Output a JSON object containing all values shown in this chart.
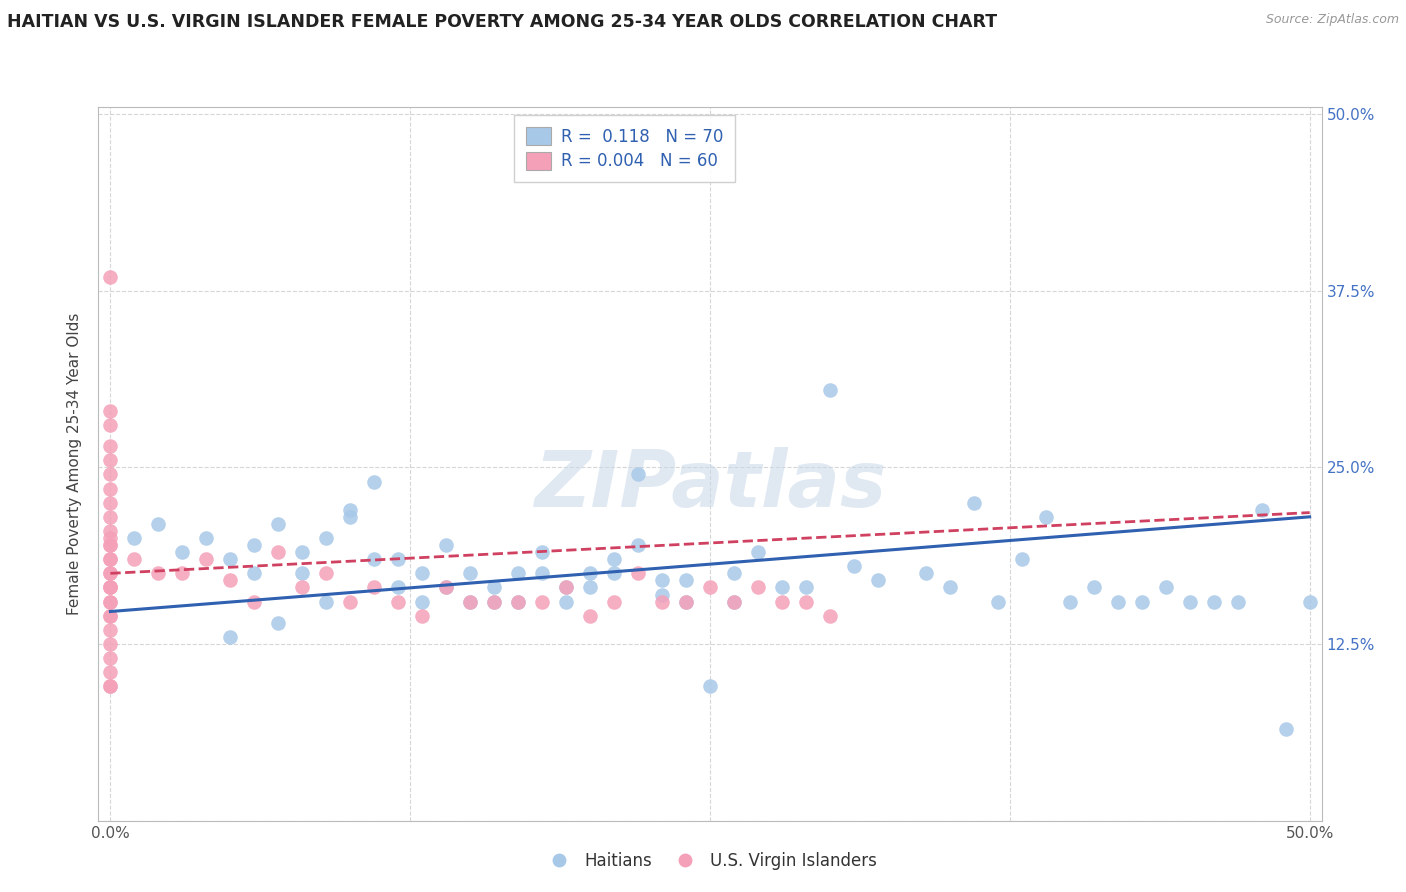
{
  "title": "HAITIAN VS U.S. VIRGIN ISLANDER FEMALE POVERTY AMONG 25-34 YEAR OLDS CORRELATION CHART",
  "source": "Source: ZipAtlas.com",
  "ylabel": "Female Poverty Among 25-34 Year Olds",
  "xlim": [
    -0.005,
    0.505
  ],
  "ylim": [
    0.0,
    0.505
  ],
  "xticks": [
    0.0,
    0.5
  ],
  "xticklabels": [
    "0.0%",
    "50.0%"
  ],
  "yticks": [
    0.0,
    0.125,
    0.25,
    0.375,
    0.5
  ],
  "ytick_right_labels": [
    "",
    "12.5%",
    "25.0%",
    "37.5%",
    "50.0%"
  ],
  "haitian_R": 0.118,
  "haitian_N": 70,
  "virgin_R": 0.004,
  "virgin_N": 60,
  "haitian_color": "#a8c8e8",
  "haitian_line_color": "#3060b0",
  "virgin_color": "#f4a0b8",
  "virgin_line_color": "#d04060",
  "background_color": "#ffffff",
  "grid_color": "#cccccc",
  "haitian_x": [
    0.01,
    0.02,
    0.03,
    0.04,
    0.05,
    0.06,
    0.07,
    0.08,
    0.09,
    0.1,
    0.11,
    0.12,
    0.13,
    0.14,
    0.15,
    0.16,
    0.17,
    0.18,
    0.19,
    0.2,
    0.21,
    0.22,
    0.23,
    0.24,
    0.25,
    0.26,
    0.27,
    0.28,
    0.29,
    0.3,
    0.31,
    0.32,
    0.05,
    0.07,
    0.09,
    0.11,
    0.13,
    0.15,
    0.17,
    0.19,
    0.21,
    0.23,
    0.34,
    0.36,
    0.38,
    0.4,
    0.42,
    0.44,
    0.46,
    0.48,
    0.06,
    0.08,
    0.1,
    0.12,
    0.14,
    0.16,
    0.18,
    0.2,
    0.22,
    0.24,
    0.35,
    0.37,
    0.39,
    0.41,
    0.43,
    0.45,
    0.47,
    0.49,
    0.5,
    0.26
  ],
  "haitian_y": [
    0.2,
    0.21,
    0.19,
    0.2,
    0.185,
    0.195,
    0.21,
    0.19,
    0.2,
    0.22,
    0.24,
    0.185,
    0.175,
    0.195,
    0.175,
    0.165,
    0.175,
    0.19,
    0.165,
    0.175,
    0.185,
    0.195,
    0.17,
    0.17,
    0.095,
    0.175,
    0.19,
    0.165,
    0.165,
    0.305,
    0.18,
    0.17,
    0.13,
    0.14,
    0.155,
    0.185,
    0.155,
    0.155,
    0.155,
    0.155,
    0.175,
    0.16,
    0.175,
    0.225,
    0.185,
    0.155,
    0.155,
    0.165,
    0.155,
    0.22,
    0.175,
    0.175,
    0.215,
    0.165,
    0.165,
    0.155,
    0.175,
    0.165,
    0.245,
    0.155,
    0.165,
    0.155,
    0.215,
    0.165,
    0.155,
    0.155,
    0.155,
    0.065,
    0.155,
    0.155
  ],
  "virgin_x": [
    0.0,
    0.0,
    0.0,
    0.0,
    0.0,
    0.0,
    0.0,
    0.0,
    0.0,
    0.0,
    0.0,
    0.0,
    0.0,
    0.0,
    0.0,
    0.0,
    0.0,
    0.0,
    0.0,
    0.0,
    0.0,
    0.0,
    0.0,
    0.0,
    0.0,
    0.0,
    0.0,
    0.0,
    0.0,
    0.0,
    0.01,
    0.02,
    0.03,
    0.04,
    0.05,
    0.06,
    0.07,
    0.08,
    0.09,
    0.1,
    0.11,
    0.12,
    0.13,
    0.14,
    0.15,
    0.16,
    0.17,
    0.18,
    0.19,
    0.2,
    0.21,
    0.22,
    0.23,
    0.24,
    0.25,
    0.26,
    0.27,
    0.28,
    0.29,
    0.3
  ],
  "virgin_y": [
    0.385,
    0.29,
    0.28,
    0.265,
    0.255,
    0.245,
    0.235,
    0.225,
    0.215,
    0.205,
    0.195,
    0.185,
    0.175,
    0.165,
    0.155,
    0.145,
    0.135,
    0.125,
    0.115,
    0.105,
    0.095,
    0.2,
    0.195,
    0.185,
    0.175,
    0.165,
    0.095,
    0.165,
    0.155,
    0.145,
    0.185,
    0.175,
    0.175,
    0.185,
    0.17,
    0.155,
    0.19,
    0.165,
    0.175,
    0.155,
    0.165,
    0.155,
    0.145,
    0.165,
    0.155,
    0.155,
    0.155,
    0.155,
    0.165,
    0.145,
    0.155,
    0.175,
    0.155,
    0.155,
    0.165,
    0.155,
    0.165,
    0.155,
    0.155,
    0.145
  ],
  "haitian_trend_x0": 0.0,
  "haitian_trend_y0": 0.148,
  "haitian_trend_x1": 0.5,
  "haitian_trend_y1": 0.215,
  "virgin_trend_x0": 0.0,
  "virgin_trend_y0": 0.175,
  "virgin_trend_x1": 0.5,
  "virgin_trend_y1": 0.218
}
